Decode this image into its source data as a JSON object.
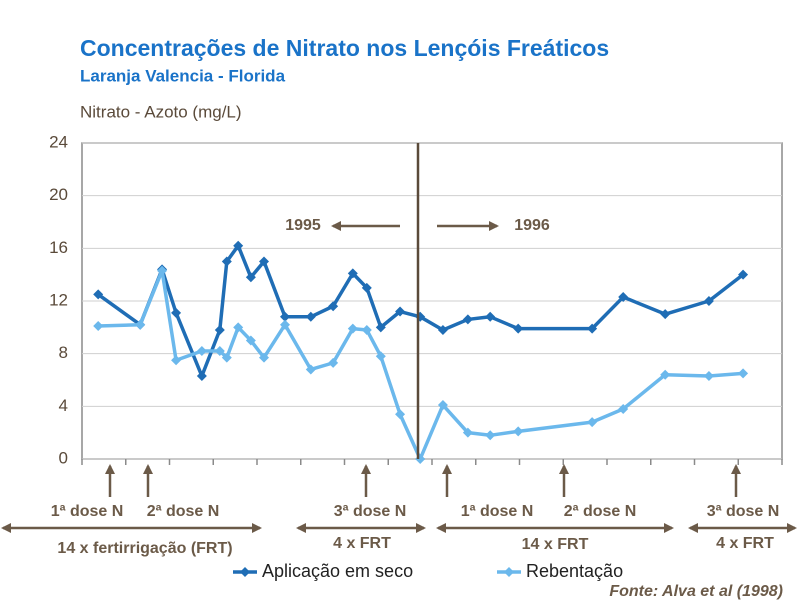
{
  "chart_data": {
    "type": "line",
    "title": "Concentrações de Nitrato nos Lençóis Freáticos",
    "subtitle": "Laranja Valencia - Florida",
    "y_label": "Nitrato - Azoto (mg/L)",
    "x": [
      0.37,
      1.33,
      1.83,
      2.15,
      2.74,
      3.15,
      3.31,
      3.57,
      3.86,
      4.16,
      4.64,
      5.23,
      5.74,
      6.19,
      6.51,
      6.83,
      7.27,
      7.73,
      8.25,
      8.82,
      9.33,
      9.97,
      11.66,
      12.37,
      13.33,
      14.33,
      15.11
    ],
    "xlim": [
      0,
      16
    ],
    "ylim": [
      0,
      24
    ],
    "yticks": [
      0,
      4,
      8,
      12,
      16,
      20,
      24
    ],
    "grid": true,
    "series": [
      {
        "name": "Aplicação em seco",
        "color": "#1f6db5",
        "values": [
          12.5,
          10.2,
          14.4,
          11.1,
          6.3,
          9.8,
          15,
          16.2,
          13.8,
          15,
          10.8,
          10.8,
          11.6,
          14.1,
          13,
          10,
          11.2,
          10.8,
          9.8,
          10.6,
          10.8,
          9.9,
          9.9,
          12.3,
          11,
          12,
          14
        ]
      },
      {
        "name": "Rebentação",
        "color": "#6bb8ec",
        "values": [
          10.1,
          10.2,
          14.3,
          7.5,
          8.2,
          8.2,
          7.7,
          10,
          9,
          7.7,
          10.2,
          6.8,
          7.3,
          9.9,
          9.8,
          7.8,
          3.4,
          0,
          4.1,
          2,
          1.8,
          2.1,
          2.8,
          3.8,
          6.4,
          6.3,
          6.5
        ]
      }
    ],
    "annotations": [
      "1995",
      "1996",
      "1ª dose N",
      "2ª dose N",
      "3ª dose N",
      "1ª dose N",
      "2ª dose N",
      "3ª dose N",
      "14 x fertirrigação (FRT)",
      "4 x FRT",
      "14 x FRT",
      "4 x FRT",
      "Fonte: Alva et al (1998)"
    ]
  }
}
